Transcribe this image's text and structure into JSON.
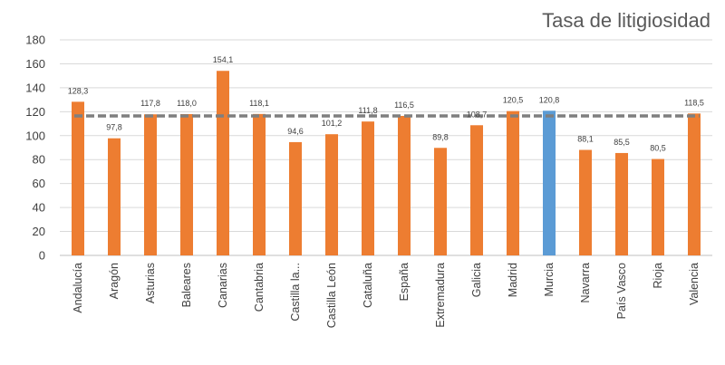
{
  "chart_data": {
    "type": "bar",
    "title": "Tasa de litigiosidad",
    "categories": [
      "Andalucía",
      "Aragón",
      "Asturias",
      "Baleares",
      "Canarias",
      "Cantabria",
      "Castilla la...",
      "Castilla León",
      "Cataluña",
      "España",
      "Extremadura",
      "Galicia",
      "Madrid",
      "Murcia",
      "Navarra",
      "País Vasco",
      "Rioja",
      "Valencia"
    ],
    "values": [
      128.3,
      97.8,
      117.8,
      118.0,
      154.1,
      118.1,
      94.6,
      101.2,
      111.8,
      116.5,
      89.8,
      108.7,
      120.5,
      120.8,
      88.1,
      85.5,
      80.5,
      118.5
    ],
    "data_labels": [
      "128,3",
      "97,8",
      "117,8",
      "118,0",
      "154,1",
      "118,1",
      "94,6",
      "101,2",
      "111,8",
      "116,5",
      "89,8",
      "108,7",
      "120,5",
      "120,8",
      "88,1",
      "85,5",
      "80,5",
      "118,5"
    ],
    "highlight_category": "Murcia",
    "reference_line": {
      "value": 116.5,
      "style": "dashed"
    },
    "ylim": [
      0,
      180
    ],
    "yticks": [
      0,
      20,
      40,
      60,
      80,
      100,
      120,
      140,
      160,
      180
    ],
    "xlabel": "",
    "ylabel": "",
    "grid": true,
    "legend": "none",
    "colors": {
      "bar": "#ED7D31",
      "highlight": "#5B9BD5",
      "reference_line": "#7F7F7F",
      "grid": "#D9D9D9",
      "axis": "#BFBFBF"
    }
  }
}
